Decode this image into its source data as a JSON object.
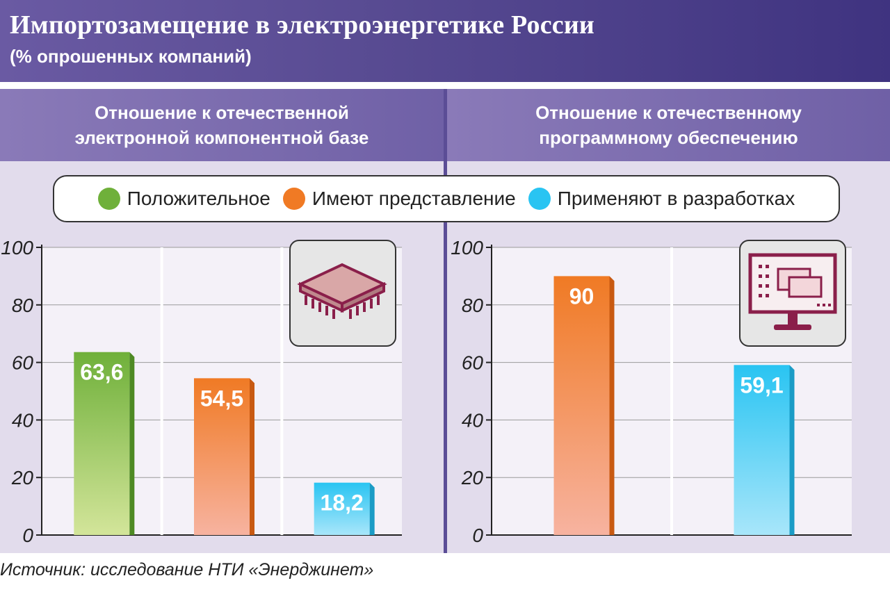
{
  "title": "Импортозамещение в электроэнергетике России",
  "subtitle": "(% опрошенных компаний)",
  "panels": [
    {
      "heading_line1": "Отношение к отечественной",
      "heading_line2": "электронной компонентной базе"
    },
    {
      "heading_line1": "Отношение к отечественному",
      "heading_line2": "программному обеспечению"
    }
  ],
  "legend": [
    {
      "label": "Положительное",
      "color": "#6fb03a"
    },
    {
      "label": "Имеют представление",
      "color": "#f07a24"
    },
    {
      "label": "Применяют в разработках",
      "color": "#29c4f2"
    }
  ],
  "icons": [
    "microchip-icon",
    "computer-monitor-icon"
  ],
  "source": "Источник: исследование НТИ «Энерджинет»",
  "chart_data": [
    {
      "type": "bar",
      "ylim": [
        0,
        100
      ],
      "yticks": [
        0,
        20,
        40,
        60,
        80,
        100
      ],
      "categories": [
        "Положительное",
        "Имеют представление",
        "Применяют в разработках"
      ],
      "values": [
        63.6,
        54.5,
        18.2
      ],
      "labels": [
        "63,6",
        "54,5",
        "18,2"
      ],
      "grid": true
    },
    {
      "type": "bar",
      "ylim": [
        0,
        100
      ],
      "yticks": [
        0,
        20,
        40,
        60,
        80,
        100
      ],
      "categories": [
        "Имеют представление",
        "Применяют в разработках"
      ],
      "values": [
        90,
        59.1
      ],
      "labels": [
        "90",
        "59,1"
      ],
      "grid": true
    }
  ]
}
